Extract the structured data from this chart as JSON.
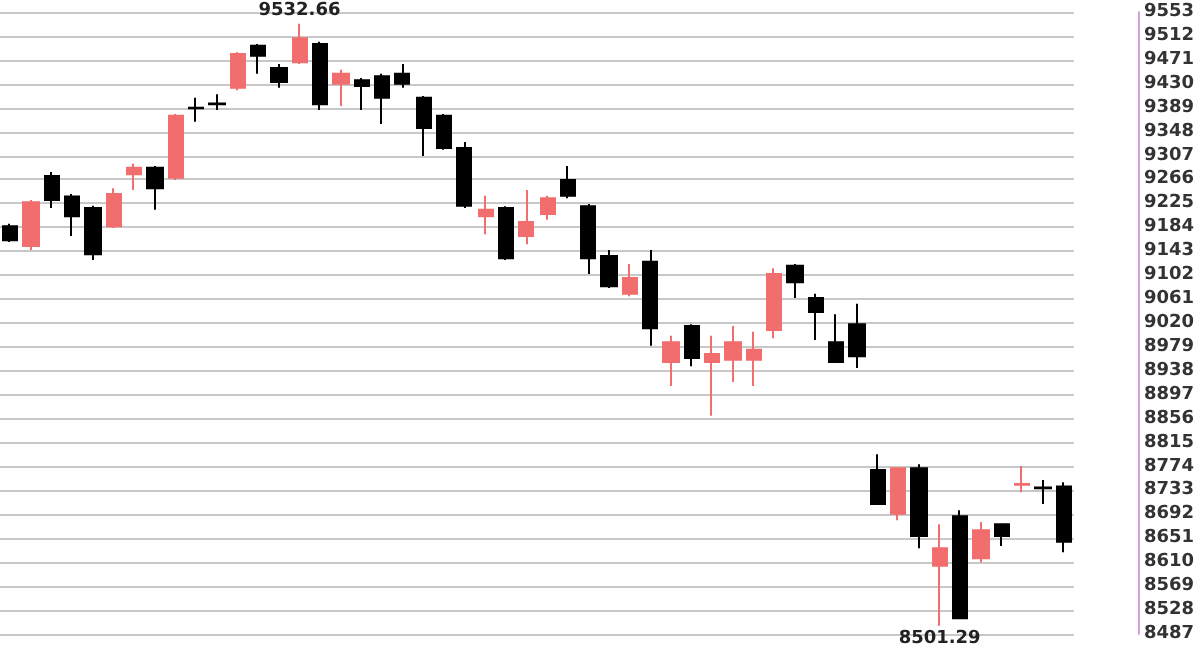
{
  "chart_data": {
    "type": "candlestick",
    "categories": [
      null,
      null,
      null,
      null,
      null,
      null,
      null,
      null,
      null,
      null,
      null,
      null,
      null,
      null,
      null,
      null,
      null,
      null,
      null,
      null,
      null,
      null,
      null,
      null,
      null,
      null,
      null,
      null,
      null,
      null,
      null,
      null,
      null,
      null,
      null,
      null,
      null,
      null,
      null,
      null,
      null,
      null,
      null,
      null,
      null,
      null,
      null,
      null,
      null,
      null,
      null,
      null
    ],
    "ohlc": [
      [
        9186,
        9190,
        9159,
        9162
      ],
      [
        9152,
        9231,
        9145,
        9227
      ],
      [
        9272,
        9279,
        9217,
        9231
      ],
      [
        9237,
        9241,
        9169,
        9203
      ],
      [
        9217,
        9221,
        9128,
        9138
      ],
      [
        9186,
        9251,
        9183,
        9241
      ],
      [
        9275,
        9293,
        9248,
        9286
      ],
      [
        9286,
        9289,
        9214,
        9251
      ],
      [
        9269,
        9378,
        9265,
        9375
      ],
      [
        9389,
        9406,
        9365,
        9388
      ],
      [
        9396,
        9412,
        9385,
        9395
      ],
      [
        9423,
        9484,
        9419,
        9481
      ],
      [
        9495,
        9498,
        9447,
        9478
      ],
      [
        9457,
        9464,
        9423,
        9433
      ],
      [
        9467,
        9532.66,
        9464,
        9508
      ],
      [
        9498,
        9502,
        9385,
        9395
      ],
      [
        9430,
        9454,
        9392,
        9447
      ],
      [
        9436,
        9440,
        9385,
        9426
      ],
      [
        9443,
        9447,
        9361,
        9406
      ],
      [
        9447,
        9464,
        9423,
        9430
      ],
      [
        9406,
        9409,
        9306,
        9354
      ],
      [
        9375,
        9378,
        9317,
        9320
      ],
      [
        9320,
        9330,
        9217,
        9221
      ],
      [
        9203,
        9238,
        9172,
        9214
      ],
      [
        9217,
        9220,
        9128,
        9131
      ],
      [
        9169,
        9248,
        9155,
        9193
      ],
      [
        9207,
        9238,
        9197,
        9234
      ],
      [
        9265,
        9289,
        9234,
        9238
      ],
      [
        9220,
        9224,
        9104,
        9131
      ],
      [
        9135,
        9145,
        9080,
        9083
      ],
      [
        9070,
        9121,
        9066,
        9097
      ],
      [
        9125,
        9145,
        8981,
        9011
      ],
      [
        8953,
        8998,
        8912,
        8987
      ],
      [
        9015,
        9018,
        8946,
        8960
      ],
      [
        8953,
        8998,
        8861,
        8967
      ],
      [
        8957,
        9015,
        8919,
        8987
      ],
      [
        8957,
        9005,
        8912,
        8974
      ],
      [
        9008,
        9114,
        8994,
        9104
      ],
      [
        9118,
        9121,
        9063,
        9090
      ],
      [
        9063,
        9070,
        8991,
        9039
      ],
      [
        8987,
        9035,
        8953,
        8953
      ],
      [
        9018,
        9053,
        8943,
        8963
      ],
      [
        8768,
        8795,
        8710,
        8710
      ],
      [
        8693,
        8771,
        8682,
        8771
      ],
      [
        8771,
        8778,
        8634,
        8655
      ],
      [
        8604,
        8675,
        8501.29,
        8634
      ],
      [
        8689,
        8699,
        8514,
        8514
      ],
      [
        8617,
        8679,
        8610,
        8665
      ],
      [
        8675,
        8675,
        8638,
        8655
      ],
      [
        8743,
        8775,
        8730,
        8744
      ],
      [
        8738,
        8751,
        8710,
        8737
      ],
      [
        8740,
        8747,
        8627,
        8645
      ]
    ],
    "colors": [
      "#000000",
      "#f26d6d",
      "#000000",
      "#000000",
      "#000000",
      "#f26d6d",
      "#f26d6d",
      "#000000",
      "#f26d6d",
      "#000000",
      "#000000",
      "#f26d6d",
      "#000000",
      "#000000",
      "#f26d6d",
      "#000000",
      "#f26d6d",
      "#000000",
      "#000000",
      "#000000",
      "#000000",
      "#000000",
      "#000000",
      "#f26d6d",
      "#000000",
      "#f26d6d",
      "#f26d6d",
      "#000000",
      "#000000",
      "#000000",
      "#f26d6d",
      "#000000",
      "#f26d6d",
      "#000000",
      "#f26d6d",
      "#f26d6d",
      "#f26d6d",
      "#f26d6d",
      "#000000",
      "#000000",
      "#000000",
      "#000000",
      "#000000",
      "#f26d6d",
      "#000000",
      "#f26d6d",
      "#000000",
      "#f26d6d",
      "#000000",
      "#f26d6d",
      "#000000",
      "#000000"
    ],
    "ylim": [
      8487,
      9553
    ],
    "yticks": [
      8487,
      8528,
      8569,
      8610,
      8651,
      8692,
      8733,
      8774,
      8815,
      8856,
      8897,
      8938,
      8979,
      9020,
      9061,
      9102,
      9143,
      9184,
      9225,
      9266,
      9307,
      9348,
      9389,
      9430,
      9471,
      9512,
      9553
    ],
    "annotations": [
      {
        "text": "9532.66",
        "y": 9532.66
      },
      {
        "text": "8501.29",
        "y": 8501.29
      }
    ],
    "grid": "y"
  }
}
